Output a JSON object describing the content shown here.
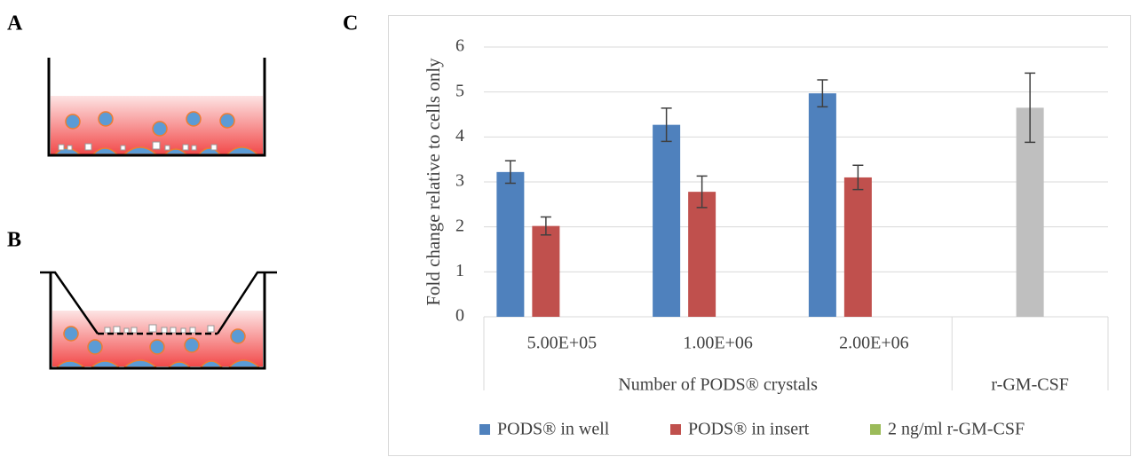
{
  "panel_labels": [
    "A",
    "B",
    "C"
  ],
  "chart_data": {
    "type": "bar",
    "y_label": "Fold change relative to cells only",
    "categories": [
      "5.00E+05",
      "1.00E+06",
      "2.00E+06",
      null
    ],
    "groups": [
      {
        "label": "Number of PODS® crystals",
        "span": [
          0,
          2
        ]
      },
      {
        "label": "r-GM-CSF",
        "span": [
          3,
          3
        ]
      }
    ],
    "series": [
      {
        "name": "PODS® in well",
        "color": "#4f81bd",
        "values": [
          3.22,
          4.27,
          4.97,
          null
        ],
        "errors": [
          0.25,
          0.37,
          0.3,
          null
        ]
      },
      {
        "name": "PODS® in insert",
        "color": "#c0504d",
        "values": [
          2.02,
          2.78,
          3.1,
          null
        ],
        "errors": [
          0.2,
          0.35,
          0.27,
          null
        ]
      },
      {
        "name": "2 ng/ml r-GM-CSF",
        "color": "#9bbb59",
        "values": [
          null,
          null,
          null,
          4.65
        ],
        "errors": [
          null,
          null,
          null,
          0.77
        ],
        "point_colors": [
          null,
          null,
          null,
          "#bfbfbf"
        ]
      }
    ],
    "ylim": [
      0,
      6
    ],
    "yticks": [
      0,
      1,
      2,
      3,
      4,
      5,
      6
    ],
    "grid": true,
    "legend": "bottom"
  }
}
